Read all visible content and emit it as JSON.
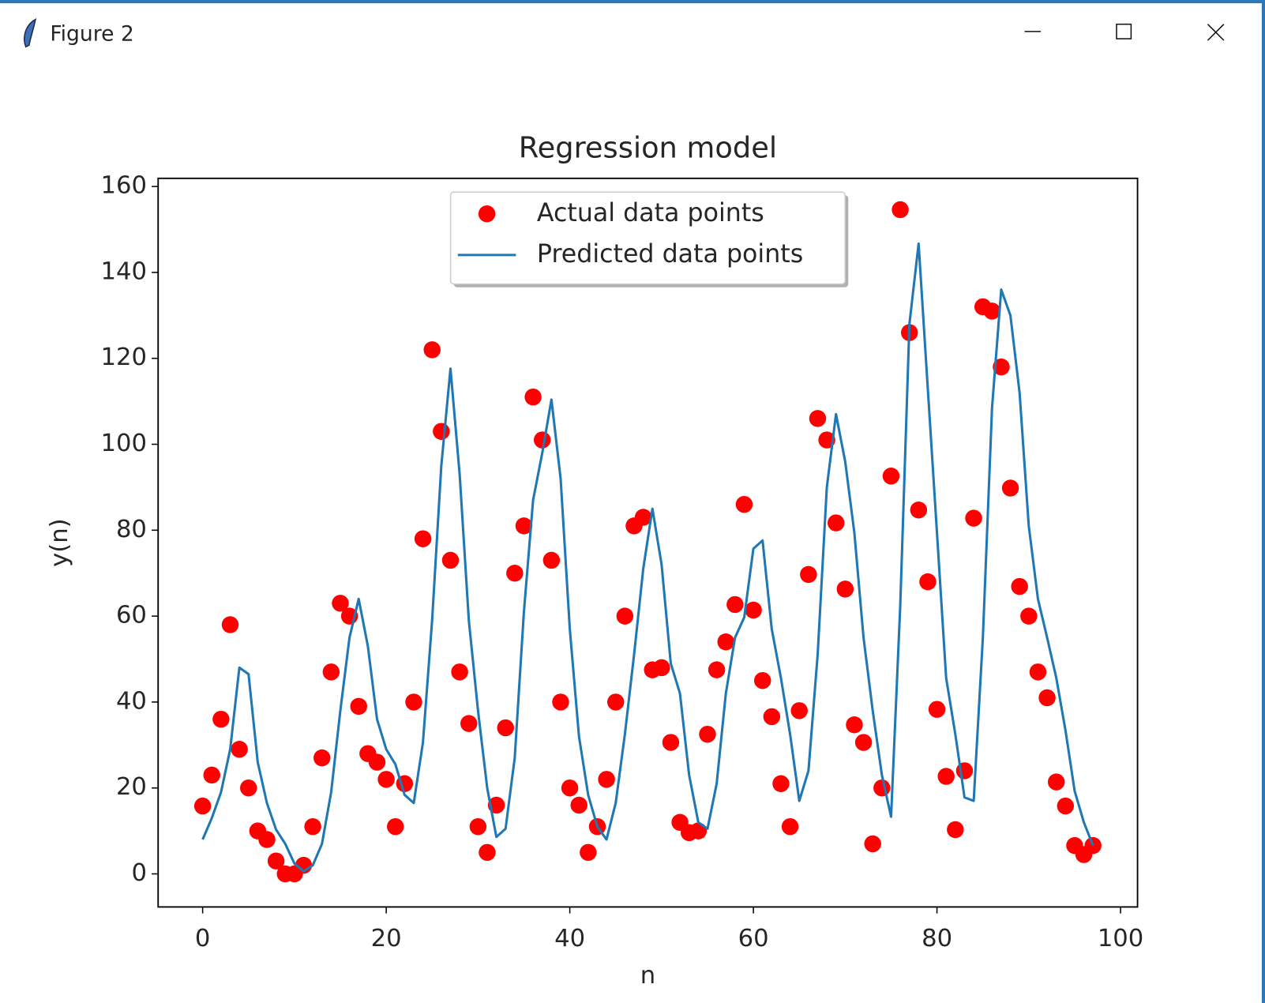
{
  "window": {
    "title": "Figure 2"
  },
  "chart_data": {
    "type": "scatter",
    "title": "Regression model",
    "x_label": "n",
    "y_label": "y(n)",
    "x": [
      0,
      1,
      2,
      3,
      4,
      5,
      6,
      7,
      8,
      9,
      10,
      11,
      12,
      13,
      14,
      15,
      16,
      17,
      18,
      19,
      20,
      21,
      22,
      23,
      24,
      25,
      26,
      27,
      28,
      29,
      30,
      31,
      32,
      33,
      34,
      35,
      36,
      37,
      38,
      39,
      40,
      41,
      42,
      43,
      44,
      45,
      46,
      47,
      48,
      49,
      50,
      51,
      52,
      53,
      54,
      55,
      56,
      57,
      58,
      59,
      60,
      61,
      62,
      63,
      64,
      65,
      66,
      67,
      68,
      69,
      70,
      71,
      72,
      73,
      74,
      75,
      76,
      77,
      78,
      79,
      80,
      81,
      82,
      83,
      84,
      85,
      86,
      87,
      88,
      89,
      90,
      91,
      92,
      93,
      94,
      95,
      96,
      97
    ],
    "series": [
      {
        "name": "Actual data points",
        "type": "scatter",
        "color": "#ff0000",
        "values": [
          15.8,
          23,
          36,
          58,
          29,
          20,
          10,
          8,
          3,
          0,
          0,
          2,
          11,
          27,
          47,
          63,
          60,
          39,
          28,
          26,
          22,
          11,
          21,
          40,
          78,
          122,
          103,
          73,
          47,
          35,
          11,
          5,
          16,
          34,
          70,
          81,
          111,
          101,
          73,
          40,
          20,
          16,
          5,
          11,
          22,
          40,
          60,
          81,
          83,
          47.5,
          48,
          30.6,
          12,
          9.6,
          10,
          32.5,
          47.5,
          54,
          62.7,
          86,
          61.4,
          45,
          36.6,
          21,
          11,
          38,
          69.7,
          106,
          101,
          81.7,
          66.3,
          34.7,
          30.6,
          7,
          20,
          92.6,
          154.6,
          126,
          84.7,
          68,
          38.3,
          22.7,
          10.3,
          24,
          82.8,
          132,
          131,
          118,
          89.8,
          66.9,
          60,
          47,
          41,
          21.4,
          15.8,
          6.6,
          4.5,
          6.6
        ]
      },
      {
        "name": "Predicted data points",
        "type": "line",
        "color": "#1f77b4",
        "values": [
          8,
          13,
          19,
          29,
          48,
          46.5,
          26,
          16.5,
          10.3,
          7,
          2.4,
          0.6,
          2,
          7,
          19,
          38,
          55,
          64,
          53,
          36,
          29,
          25.5,
          18.4,
          16.5,
          30.6,
          59,
          95,
          117.6,
          93,
          59,
          38,
          20,
          8.6,
          10.5,
          27,
          61,
          87,
          98,
          110.4,
          92,
          57,
          32,
          18.4,
          11,
          8,
          16.5,
          32.5,
          51,
          71,
          85,
          72,
          49,
          42,
          23,
          12,
          10.5,
          21,
          42,
          55,
          59.7,
          75.7,
          77.6,
          57,
          45.6,
          32.5,
          17,
          24,
          51,
          90,
          107,
          96,
          79.4,
          55,
          38,
          23,
          13.3,
          62.5,
          128,
          146.7,
          113,
          79.4,
          45.6,
          32.5,
          17.8,
          17,
          55,
          108.5,
          136,
          130,
          112,
          81,
          64,
          55,
          45.6,
          33.4,
          19.3,
          12,
          6.6
        ]
      }
    ],
    "xlim": [
      -4.85,
      101.85
    ],
    "ylim": [
      -7.7,
      161.9
    ],
    "xticks": [
      0,
      20,
      40,
      60,
      80,
      100
    ],
    "yticks": [
      0,
      20,
      40,
      60,
      80,
      100,
      120,
      140,
      160
    ],
    "legend": "upper center",
    "grid": false
  }
}
